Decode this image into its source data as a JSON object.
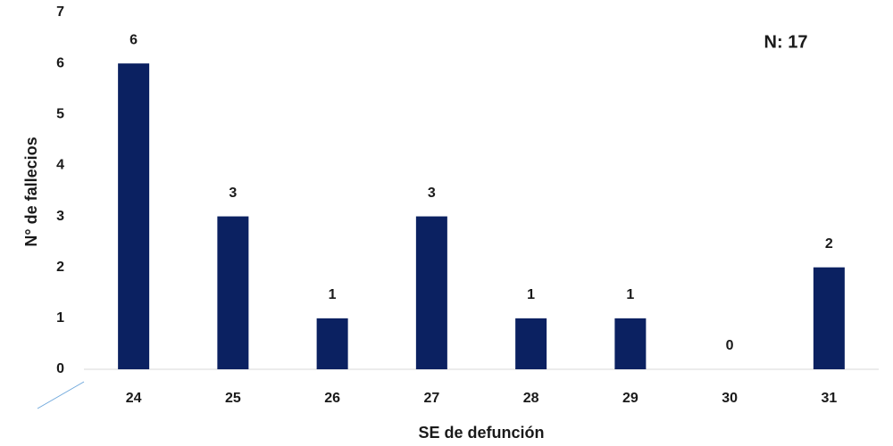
{
  "chart_data": {
    "type": "bar",
    "annotation": "N: 17",
    "x_label": "SE de defunción",
    "y_label": "N° de fallecios",
    "categories": [
      "24",
      "25",
      "26",
      "27",
      "28",
      "29",
      "30",
      "31"
    ],
    "values": [
      6,
      3,
      1,
      3,
      1,
      1,
      0,
      2
    ],
    "color": "#0b2161",
    "ylim": [
      0,
      7
    ],
    "yticks": [
      0,
      1,
      2,
      3,
      4,
      5,
      6,
      7
    ],
    "grid": false
  }
}
